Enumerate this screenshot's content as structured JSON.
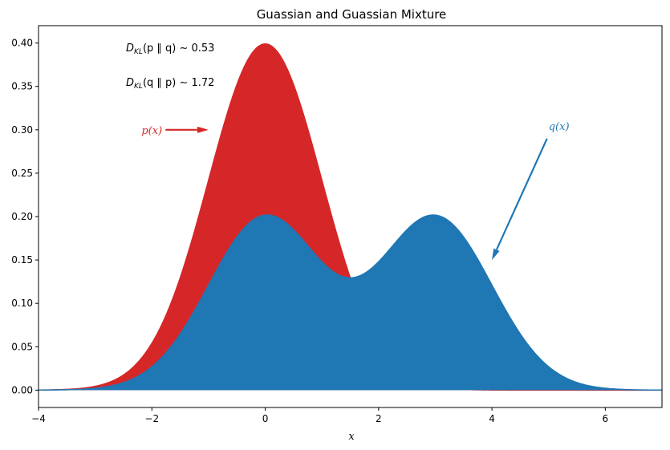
{
  "chart_data": {
    "type": "area",
    "title": "Guassian and Guassian Mixture",
    "xlabel": "x",
    "ylabel": "",
    "xlim": [
      -4,
      7
    ],
    "ylim": [
      -0.02,
      0.42
    ],
    "x_ticks": [
      -4,
      -2,
      0,
      2,
      4,
      6
    ],
    "y_ticks": [
      0.0,
      0.05,
      0.1,
      0.15,
      0.2,
      0.25,
      0.3,
      0.35,
      0.4
    ],
    "x_tick_labels": [
      "−4",
      "−2",
      "0",
      "2",
      "4",
      "6"
    ],
    "y_tick_labels": [
      "0.00",
      "0.05",
      "0.10",
      "0.15",
      "0.20",
      "0.25",
      "0.30",
      "0.35",
      "0.40"
    ],
    "grid": false,
    "series": [
      {
        "label": "p(x)",
        "kind": "gaussian",
        "components": [
          {
            "weight": 1.0,
            "mean": 0,
            "std": 1
          }
        ],
        "color": "#d62728"
      },
      {
        "label": "q(x)",
        "kind": "gaussian_mixture",
        "components": [
          {
            "weight": 0.5,
            "mean": 0,
            "std": 1
          },
          {
            "weight": 0.5,
            "mean": 3,
            "std": 1
          }
        ],
        "color": "#1f77b4"
      }
    ],
    "annotations": [
      {
        "id": "kl_pq",
        "text_main": "D",
        "text_sub": "KL",
        "text_args": "(p ∥ q) ∼ 0.53"
      },
      {
        "id": "kl_qp",
        "text_main": "D",
        "text_sub": "KL",
        "text_args": "(q ∥ p) ∼ 1.72"
      }
    ],
    "arrows": [
      {
        "label": "p(x)",
        "text_xy": [
          -2,
          0.3
        ],
        "target_xy": [
          -1,
          0.3
        ],
        "color": "#d62728"
      },
      {
        "label": "q(x)",
        "text_xy": [
          5,
          0.3
        ],
        "target_xy": [
          4,
          0.15
        ],
        "color": "#1f77b4"
      }
    ]
  }
}
